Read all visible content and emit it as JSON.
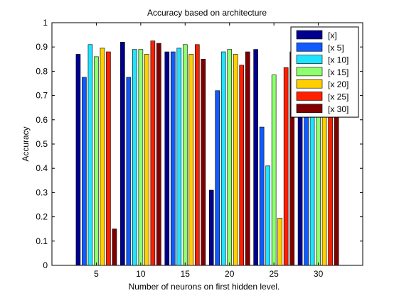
{
  "chart_data": {
    "type": "bar",
    "title": "Accuracy based on architecture",
    "xlabel": "Number of neurons on first hidden level.",
    "ylabel": "Accuracy",
    "categories": [
      "5",
      "10",
      "15",
      "20",
      "25",
      "30"
    ],
    "ylim": [
      0,
      1
    ],
    "yticks": [
      "0",
      "0.1",
      "0.2",
      "0.3",
      "0.4",
      "0.5",
      "0.6",
      "0.7",
      "0.8",
      "0.9",
      "1"
    ],
    "grid": false,
    "legend_position": "top-right",
    "series": [
      {
        "name": "[x]",
        "color": "#00008f",
        "values": [
          0.87,
          0.92,
          0.88,
          0.31,
          0.89,
          0.63
        ]
      },
      {
        "name": "[x 5]",
        "color": "#0f5bff",
        "values": [
          0.775,
          0.775,
          0.88,
          0.72,
          0.57,
          0.63
        ]
      },
      {
        "name": "[x 10]",
        "color": "#1fe3ff",
        "values": [
          0.91,
          0.89,
          0.895,
          0.88,
          0.41,
          0.63
        ]
      },
      {
        "name": "[x 15]",
        "color": "#8fff70",
        "values": [
          0.86,
          0.89,
          0.91,
          0.89,
          0.785,
          0.63
        ]
      },
      {
        "name": "[x 20]",
        "color": "#ffcf00",
        "values": [
          0.895,
          0.87,
          0.87,
          0.87,
          0.195,
          0.63
        ]
      },
      {
        "name": "[x 25]",
        "color": "#ff2000",
        "values": [
          0.88,
          0.925,
          0.91,
          0.825,
          0.815,
          0.63
        ]
      },
      {
        "name": "[x 30]",
        "color": "#800000",
        "values": [
          0.15,
          0.915,
          0.85,
          0.88,
          0.88,
          0.63
        ]
      }
    ]
  }
}
